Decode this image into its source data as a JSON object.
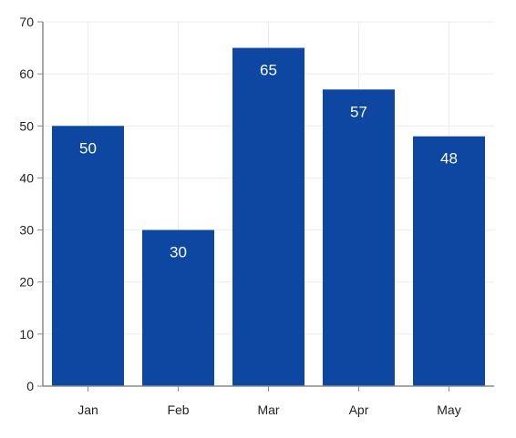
{
  "chart_data": {
    "type": "bar",
    "categories": [
      "Jan",
      "Feb",
      "Mar",
      "Apr",
      "May"
    ],
    "values": [
      50,
      30,
      65,
      57,
      48
    ],
    "title": "",
    "xlabel": "",
    "ylabel": "",
    "ylim": [
      0,
      70
    ],
    "y_ticks": [
      0,
      10,
      20,
      30,
      40,
      50,
      60,
      70
    ],
    "grid": true,
    "legend": "none",
    "data_labels": true
  },
  "colors": {
    "bar": "#0d47a1",
    "grid": "#ececec",
    "axis": "#8a8a8a",
    "background": "#ffffff"
  }
}
